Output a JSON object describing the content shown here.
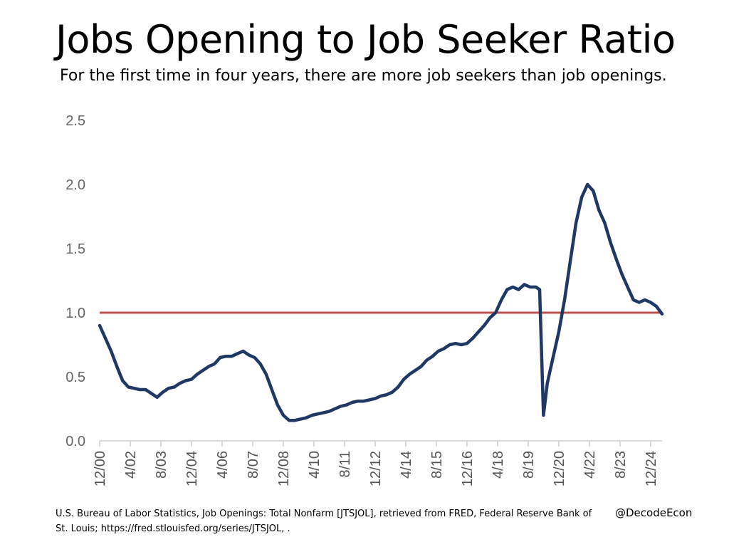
{
  "chart_data": {
    "type": "line",
    "title": "Jobs Opening to Job Seeker Ratio",
    "subtitle": "For the first time in four years, there are more job seekers than job openings.",
    "xlabel": "",
    "ylabel": "",
    "ylim": [
      0,
      2.5
    ],
    "yticks": [
      "0.0",
      "0.5",
      "1.0",
      "1.5",
      "2.0",
      "2.5"
    ],
    "xticks": [
      "12/00",
      "4/02",
      "8/03",
      "12/04",
      "4/06",
      "8/07",
      "12/08",
      "4/10",
      "8/11",
      "12/12",
      "4/14",
      "8/15",
      "12/16",
      "4/18",
      "8/19",
      "12/20",
      "4/22",
      "8/23",
      "12/24"
    ],
    "grid": false,
    "legend": "none",
    "reference_line": {
      "y": 1.0,
      "color": "#c0504d"
    },
    "series": [
      {
        "color": "#1f3864",
        "x": [
          "2000-12",
          "2001-03",
          "2001-06",
          "2001-09",
          "2001-12",
          "2002-03",
          "2002-06",
          "2002-09",
          "2002-12",
          "2003-03",
          "2003-06",
          "2003-09",
          "2003-12",
          "2004-03",
          "2004-06",
          "2004-09",
          "2004-12",
          "2005-03",
          "2005-06",
          "2005-09",
          "2005-12",
          "2006-03",
          "2006-06",
          "2006-09",
          "2006-12",
          "2007-03",
          "2007-06",
          "2007-09",
          "2007-12",
          "2008-03",
          "2008-06",
          "2008-09",
          "2008-12",
          "2009-03",
          "2009-06",
          "2009-09",
          "2009-12",
          "2010-03",
          "2010-06",
          "2010-09",
          "2010-12",
          "2011-03",
          "2011-06",
          "2011-09",
          "2011-12",
          "2012-03",
          "2012-06",
          "2012-09",
          "2012-12",
          "2013-03",
          "2013-06",
          "2013-09",
          "2013-12",
          "2014-03",
          "2014-06",
          "2014-09",
          "2014-12",
          "2015-03",
          "2015-06",
          "2015-09",
          "2015-12",
          "2016-03",
          "2016-06",
          "2016-09",
          "2016-12",
          "2017-03",
          "2017-06",
          "2017-09",
          "2017-12",
          "2018-03",
          "2018-06",
          "2018-09",
          "2018-12",
          "2019-03",
          "2019-06",
          "2019-09",
          "2019-12",
          "2020-02",
          "2020-04",
          "2020-06",
          "2020-09",
          "2020-12",
          "2021-03",
          "2021-06",
          "2021-09",
          "2021-12",
          "2022-03",
          "2022-06",
          "2022-09",
          "2022-12",
          "2023-03",
          "2023-06",
          "2023-09",
          "2023-12",
          "2024-03",
          "2024-06",
          "2024-09",
          "2024-12",
          "2025-03",
          "2025-06"
        ],
        "y": [
          0.9,
          0.8,
          0.7,
          0.58,
          0.47,
          0.42,
          0.41,
          0.4,
          0.4,
          0.37,
          0.34,
          0.38,
          0.41,
          0.42,
          0.45,
          0.47,
          0.48,
          0.52,
          0.55,
          0.58,
          0.6,
          0.65,
          0.66,
          0.66,
          0.68,
          0.7,
          0.67,
          0.65,
          0.6,
          0.52,
          0.4,
          0.28,
          0.2,
          0.16,
          0.16,
          0.17,
          0.18,
          0.2,
          0.21,
          0.22,
          0.23,
          0.25,
          0.27,
          0.28,
          0.3,
          0.31,
          0.31,
          0.32,
          0.33,
          0.35,
          0.36,
          0.38,
          0.42,
          0.48,
          0.52,
          0.55,
          0.58,
          0.63,
          0.66,
          0.7,
          0.72,
          0.75,
          0.76,
          0.75,
          0.76,
          0.8,
          0.85,
          0.9,
          0.96,
          1.0,
          1.1,
          1.18,
          1.2,
          1.18,
          1.22,
          1.2,
          1.2,
          1.18,
          0.2,
          0.45,
          0.65,
          0.85,
          1.1,
          1.4,
          1.7,
          1.9,
          2.0,
          1.95,
          1.8,
          1.7,
          1.55,
          1.42,
          1.3,
          1.2,
          1.1,
          1.08,
          1.1,
          1.08,
          1.05,
          0.99
        ]
      }
    ]
  },
  "source": "U.S. Bureau of Labor Statistics, Job Openings: Total Nonfarm [JTSJOL], retrieved from FRED, Federal Reserve Bank of St. Louis; https://fred.stlouisfed.org/series/JTSJOL, .",
  "handle": "@DecodeEcon"
}
